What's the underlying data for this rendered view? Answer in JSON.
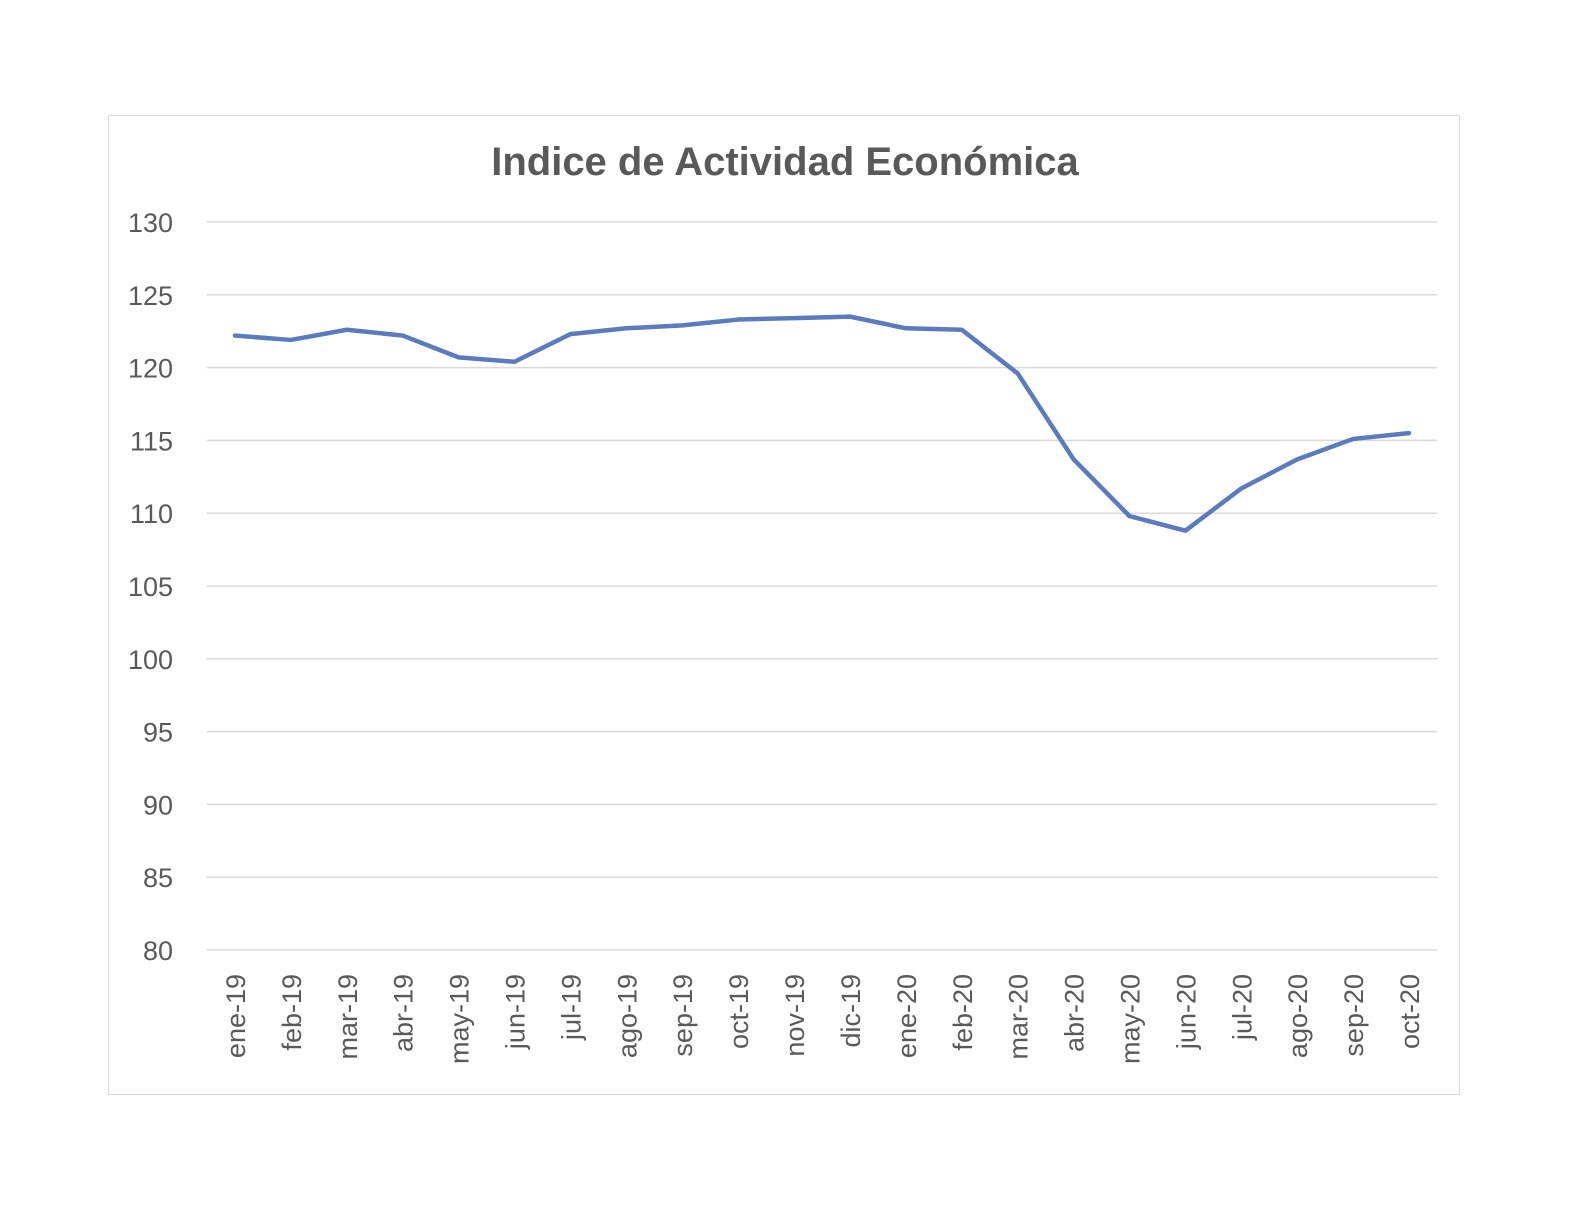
{
  "chart_data": {
    "type": "line",
    "title": "Indice de Actividad Económica",
    "xlabel": "",
    "ylabel": "",
    "ylim": [
      80,
      130
    ],
    "yticks": [
      80,
      85,
      90,
      95,
      100,
      105,
      110,
      115,
      120,
      125,
      130
    ],
    "grid": true,
    "categories": [
      "ene-19",
      "feb-19",
      "mar-19",
      "abr-19",
      "may-19",
      "jun-19",
      "jul-19",
      "ago-19",
      "sep-19",
      "oct-19",
      "nov-19",
      "dic-19",
      "ene-20",
      "feb-20",
      "mar-20",
      "abr-20",
      "may-20",
      "jun-20",
      "jul-20",
      "ago-20",
      "sep-20",
      "oct-20"
    ],
    "series": [
      {
        "values": [
          122.2,
          121.9,
          122.6,
          122.2,
          120.7,
          120.4,
          122.3,
          122.7,
          122.9,
          123.3,
          123.4,
          123.5,
          122.7,
          122.6,
          119.6,
          113.7,
          109.8,
          108.8,
          111.7,
          113.7,
          115.1,
          115.5
        ],
        "color": "#5b7bbf"
      }
    ]
  }
}
